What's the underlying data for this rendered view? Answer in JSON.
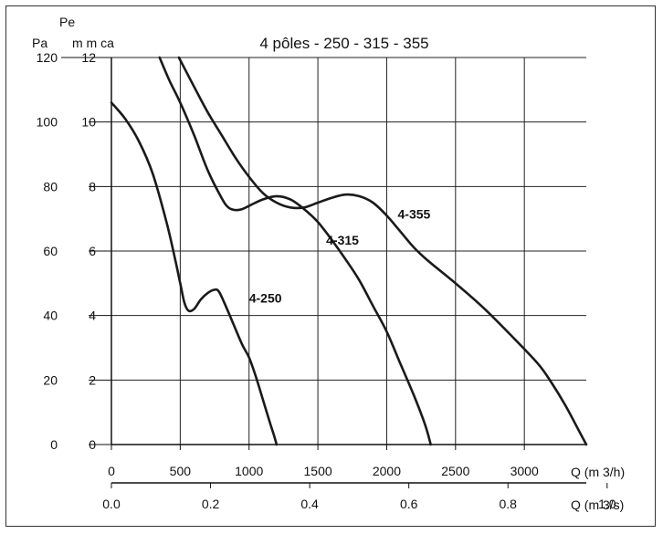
{
  "chart_data": {
    "type": "line",
    "title": "4 pôles - 250 - 315 - 355",
    "y_axis_left": {
      "unit_label": "Pa",
      "ticks": [
        0,
        20,
        40,
        60,
        80,
        100,
        120
      ],
      "range": [
        0,
        120
      ]
    },
    "y_axis_right": {
      "label_line1": "Pe",
      "label_line2": "m m ca",
      "ticks": [
        0,
        2,
        4,
        6,
        8,
        10,
        12
      ],
      "range": [
        0,
        12
      ]
    },
    "x_axis_primary": {
      "label": "Q  (m 3/h)",
      "ticks": [
        0,
        500,
        1000,
        1500,
        2000,
        2500,
        3000
      ],
      "range": [
        0,
        3450
      ]
    },
    "x_axis_secondary": {
      "label": "Q  (m 3/s)",
      "ticks": [
        0.0,
        0.2,
        0.4,
        0.6,
        0.8,
        1.0
      ],
      "tick_labels": [
        "0.0",
        "0.2",
        "0.4",
        "0.6",
        "0.8",
        "1.0"
      ],
      "range": [
        0,
        0.958
      ]
    },
    "grid": true,
    "series": [
      {
        "name": "4-250",
        "label_at": [
          1000,
          44
        ],
        "points": [
          [
            0,
            106
          ],
          [
            100,
            101
          ],
          [
            200,
            94
          ],
          [
            300,
            84
          ],
          [
            400,
            69
          ],
          [
            460,
            58
          ],
          [
            500,
            50
          ],
          [
            530,
            44
          ],
          [
            560,
            41.5
          ],
          [
            600,
            42
          ],
          [
            650,
            45
          ],
          [
            700,
            47
          ],
          [
            750,
            48
          ],
          [
            780,
            47.5
          ],
          [
            820,
            44
          ],
          [
            880,
            38
          ],
          [
            950,
            31
          ],
          [
            1000,
            27
          ],
          [
            1050,
            21
          ],
          [
            1100,
            14
          ],
          [
            1150,
            7
          ],
          [
            1180,
            3
          ],
          [
            1200,
            0
          ]
        ]
      },
      {
        "name": "4-315",
        "label_at": [
          1560,
          62
        ],
        "points": [
          [
            350,
            120
          ],
          [
            420,
            113
          ],
          [
            500,
            106
          ],
          [
            600,
            96
          ],
          [
            700,
            85
          ],
          [
            800,
            76.5
          ],
          [
            850,
            73.5
          ],
          [
            900,
            72.7
          ],
          [
            950,
            73
          ],
          [
            1000,
            74
          ],
          [
            1100,
            76
          ],
          [
            1200,
            77
          ],
          [
            1300,
            76
          ],
          [
            1400,
            73
          ],
          [
            1500,
            69
          ],
          [
            1600,
            63.5
          ],
          [
            1700,
            57.5
          ],
          [
            1800,
            51
          ],
          [
            1900,
            43
          ],
          [
            2000,
            35
          ],
          [
            2100,
            25
          ],
          [
            2200,
            15
          ],
          [
            2280,
            6
          ],
          [
            2320,
            0
          ]
        ]
      },
      {
        "name": "4-355",
        "label_at": [
          2080,
          70
        ],
        "points": [
          [
            490,
            120
          ],
          [
            600,
            111
          ],
          [
            700,
            103
          ],
          [
            800,
            96
          ],
          [
            900,
            89
          ],
          [
            1000,
            83
          ],
          [
            1100,
            78
          ],
          [
            1200,
            75
          ],
          [
            1300,
            73.5
          ],
          [
            1400,
            73.5
          ],
          [
            1500,
            75
          ],
          [
            1600,
            76.5
          ],
          [
            1700,
            77.5
          ],
          [
            1800,
            77
          ],
          [
            1900,
            75
          ],
          [
            2000,
            71
          ],
          [
            2100,
            66
          ],
          [
            2200,
            61
          ],
          [
            2300,
            57
          ],
          [
            2500,
            50
          ],
          [
            2700,
            42.5
          ],
          [
            2900,
            34
          ],
          [
            3100,
            25
          ],
          [
            3200,
            19
          ],
          [
            3300,
            12
          ],
          [
            3400,
            4
          ],
          [
            3450,
            0
          ]
        ]
      }
    ]
  }
}
